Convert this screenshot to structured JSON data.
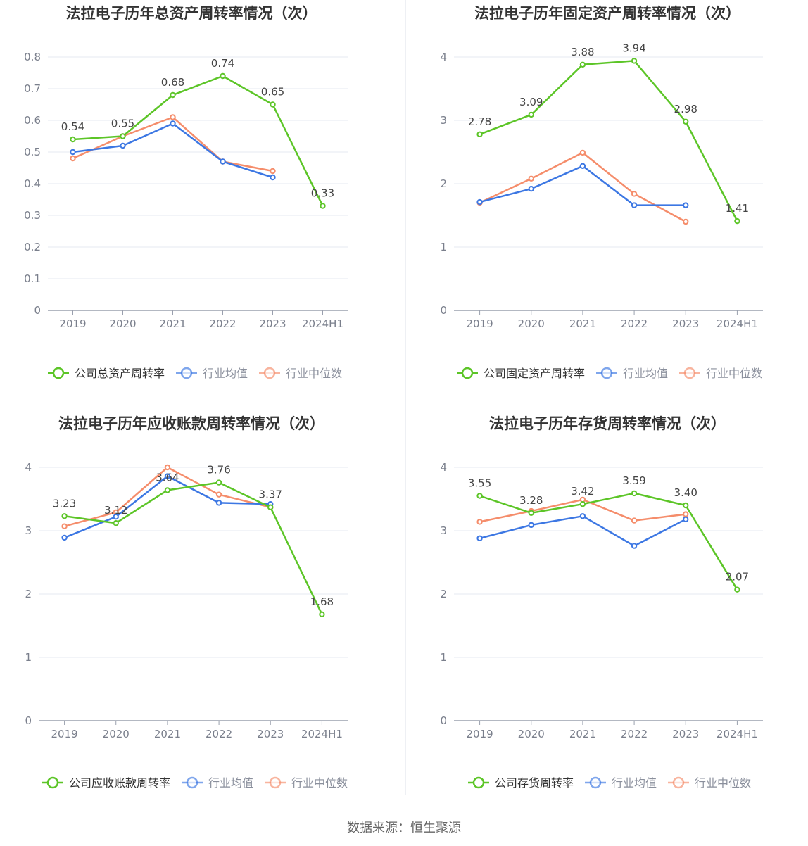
{
  "source": "数据来源：恒生聚源",
  "colors": {
    "company": "#5cc527",
    "avg": "#3c77e3",
    "median": "#f58d6b",
    "grid": "#e6e9f2",
    "axis": "#9aa0ae",
    "tick": "#7a7f8c",
    "label": "#444444",
    "title": "#333333"
  },
  "chart_data": [
    {
      "type": "line",
      "title": "法拉电子历年总资产周转率情况（次）",
      "categories": [
        "2019",
        "2020",
        "2021",
        "2022",
        "2023",
        "2024H1"
      ],
      "ylim": [
        0,
        0.8
      ],
      "yticks": [
        "0",
        "0.1",
        "0.2",
        "0.3",
        "0.4",
        "0.5",
        "0.6",
        "0.7",
        "0.8"
      ],
      "ytick_values": [
        0,
        0.1,
        0.2,
        0.3,
        0.4,
        0.5,
        0.6,
        0.7,
        0.8
      ],
      "series": [
        {
          "name": "公司总资产周转率",
          "key": "company",
          "values": [
            0.54,
            0.55,
            0.68,
            0.74,
            0.65,
            0.33
          ],
          "labels": [
            "0.54",
            "0.55",
            "0.68",
            "0.74",
            "0.65",
            "0.33"
          ]
        },
        {
          "name": "行业均值",
          "key": "avg",
          "values": [
            0.5,
            0.52,
            0.59,
            0.47,
            0.42,
            null
          ]
        },
        {
          "name": "行业中位数",
          "key": "median",
          "values": [
            0.48,
            0.55,
            0.61,
            0.47,
            0.44,
            null
          ]
        }
      ]
    },
    {
      "type": "line",
      "title": "法拉电子历年固定资产周转率情况（次）",
      "categories": [
        "2019",
        "2020",
        "2021",
        "2022",
        "2023",
        "2024H1"
      ],
      "ylim": [
        0,
        4
      ],
      "yticks": [
        "0",
        "1",
        "2",
        "3",
        "4"
      ],
      "ytick_values": [
        0,
        1,
        2,
        3,
        4
      ],
      "series": [
        {
          "name": "公司固定资产周转率",
          "key": "company",
          "values": [
            2.78,
            3.09,
            3.88,
            3.94,
            2.98,
            1.41
          ],
          "labels": [
            "2.78",
            "3.09",
            "3.88",
            "3.94",
            "2.98",
            "1.41"
          ]
        },
        {
          "name": "行业均值",
          "key": "avg",
          "values": [
            1.71,
            1.92,
            2.28,
            1.66,
            1.66,
            null
          ]
        },
        {
          "name": "行业中位数",
          "key": "median",
          "values": [
            1.7,
            2.08,
            2.49,
            1.84,
            1.4,
            null
          ]
        }
      ]
    },
    {
      "type": "line",
      "title": "法拉电子历年应收账款周转率情况（次）",
      "categories": [
        "2019",
        "2020",
        "2021",
        "2022",
        "2023",
        "2024H1"
      ],
      "ylim": [
        0,
        4
      ],
      "yticks": [
        "0",
        "1",
        "2",
        "3",
        "4"
      ],
      "ytick_values": [
        0,
        1,
        2,
        3,
        4
      ],
      "series": [
        {
          "name": "公司应收账款周转率",
          "key": "company",
          "values": [
            3.23,
            3.12,
            3.64,
            3.76,
            3.37,
            1.68
          ],
          "labels": [
            "3.23",
            "3.12",
            "3.64",
            "3.76",
            "3.37",
            "1.68"
          ]
        },
        {
          "name": "行业均值",
          "key": "avg",
          "values": [
            2.89,
            3.22,
            3.86,
            3.44,
            3.42,
            null
          ]
        },
        {
          "name": "行业中位数",
          "key": "median",
          "values": [
            3.07,
            3.29,
            4.0,
            3.57,
            3.37,
            null
          ]
        }
      ]
    },
    {
      "type": "line",
      "title": "法拉电子历年存货周转率情况（次）",
      "categories": [
        "2019",
        "2020",
        "2021",
        "2022",
        "2023",
        "2024H1"
      ],
      "ylim": [
        0,
        4
      ],
      "yticks": [
        "0",
        "1",
        "2",
        "3",
        "4"
      ],
      "ytick_values": [
        0,
        1,
        2,
        3,
        4
      ],
      "series": [
        {
          "name": "公司存货周转率",
          "key": "company",
          "values": [
            3.55,
            3.28,
            3.42,
            3.59,
            3.4,
            2.07
          ],
          "labels": [
            "3.55",
            "3.28",
            "3.42",
            "3.59",
            "3.40",
            "2.07"
          ]
        },
        {
          "name": "行业均值",
          "key": "avg",
          "values": [
            2.88,
            3.09,
            3.23,
            2.76,
            3.18,
            null
          ]
        },
        {
          "name": "行业中位数",
          "key": "median",
          "values": [
            3.14,
            3.31,
            3.49,
            3.16,
            3.26,
            null
          ]
        }
      ]
    }
  ]
}
